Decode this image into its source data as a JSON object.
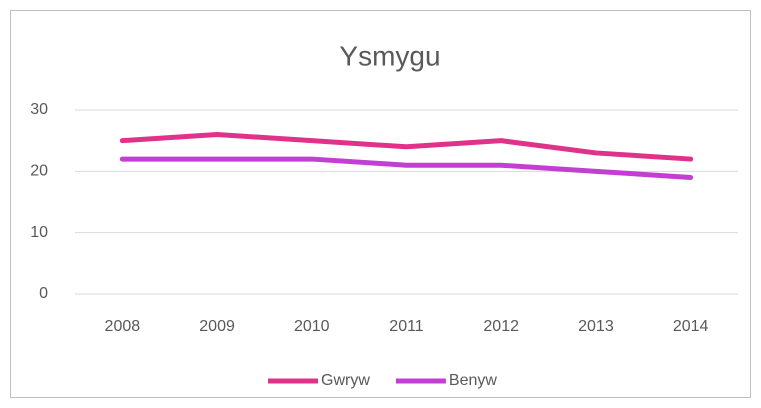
{
  "chart_data": {
    "type": "line",
    "title": "Ysmygu",
    "categories": [
      "2008",
      "2009",
      "2010",
      "2011",
      "2012",
      "2013",
      "2014"
    ],
    "series": [
      {
        "name": "Gwryw",
        "color": "#e0328a",
        "values": [
          25,
          26,
          25,
          24,
          25,
          23,
          22
        ]
      },
      {
        "name": "Benyw",
        "color": "#c33fd4",
        "values": [
          22,
          22,
          22,
          21,
          21,
          20,
          19
        ]
      }
    ],
    "ylim": [
      0,
      30
    ],
    "yticks": [
      0,
      10,
      20,
      30
    ],
    "grid": true,
    "legend": "bottom"
  }
}
